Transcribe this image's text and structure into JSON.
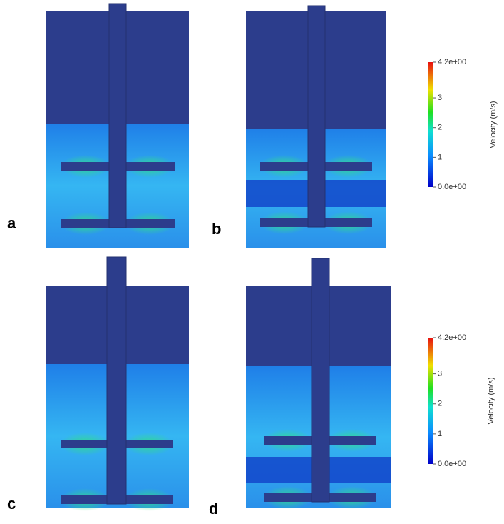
{
  "panels": [
    {
      "label": "a"
    },
    {
      "label": "b"
    },
    {
      "label": "c"
    },
    {
      "label": "d"
    }
  ],
  "colorbars": [
    {
      "title": "Velocity (m/s)",
      "ticks": [
        "4.2e+00",
        "3",
        "2",
        "1",
        "0.0e+00"
      ]
    },
    {
      "title": "Velocity (m/s)",
      "ticks": [
        "4.2e+00",
        "3",
        "2",
        "1",
        "0.0e+00"
      ]
    }
  ]
}
